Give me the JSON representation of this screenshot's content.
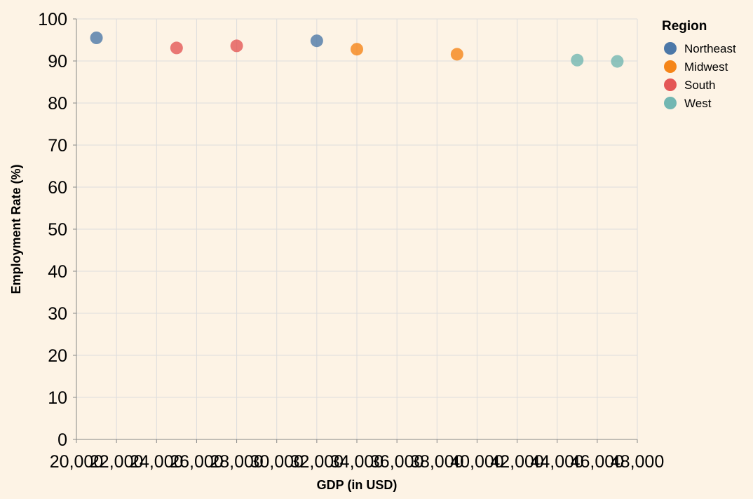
{
  "chart_data": {
    "type": "scatter",
    "title": "",
    "xlabel": "GDP (in USD)",
    "ylabel": "Employment Rate (%)",
    "xlim": [
      20000,
      48000
    ],
    "ylim": [
      0,
      100
    ],
    "x_ticks": [
      20000,
      22000,
      24000,
      26000,
      28000,
      30000,
      32000,
      34000,
      36000,
      38000,
      40000,
      42000,
      44000,
      46000,
      48000
    ],
    "y_ticks": [
      0,
      10,
      20,
      30,
      40,
      50,
      60,
      70,
      80,
      90,
      100
    ],
    "x_tick_labels": [
      "20,000",
      "22,000",
      "24,000",
      "26,000",
      "28,000",
      "30,000",
      "32,000",
      "34,000",
      "36,000",
      "38,000",
      "40,000",
      "42,000",
      "44,000",
      "46,000",
      "48,000"
    ],
    "y_tick_labels": [
      "0",
      "10",
      "20",
      "30",
      "40",
      "50",
      "60",
      "70",
      "80",
      "90",
      "100"
    ],
    "grid": true,
    "legend": {
      "title": "Region",
      "position": "top-right"
    },
    "series": [
      {
        "name": "Northeast",
        "color": "#4c78a8",
        "points": [
          {
            "x": 21000,
            "y": 95.5
          },
          {
            "x": 32000,
            "y": 94.8
          }
        ]
      },
      {
        "name": "Midwest",
        "color": "#f58518",
        "points": [
          {
            "x": 34000,
            "y": 92.8
          },
          {
            "x": 39000,
            "y": 91.6
          }
        ]
      },
      {
        "name": "South",
        "color": "#e45756",
        "points": [
          {
            "x": 25000,
            "y": 93.1
          },
          {
            "x": 28000,
            "y": 93.6
          }
        ]
      },
      {
        "name": "West",
        "color": "#72b7b2",
        "points": [
          {
            "x": 45000,
            "y": 90.2
          },
          {
            "x": 47000,
            "y": 89.9
          }
        ]
      }
    ]
  }
}
